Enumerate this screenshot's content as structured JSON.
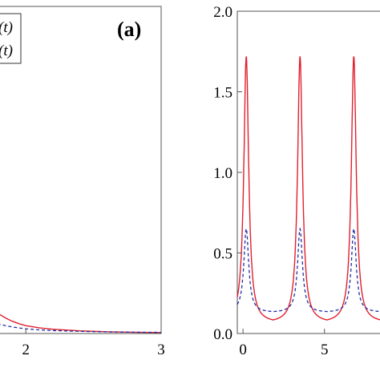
{
  "chart_data": [
    {
      "type": "line",
      "panel_label": "(a)",
      "xlim": [
        1.75,
        3.0
      ],
      "ylim": [
        0.0,
        2.0
      ],
      "x_ticks": [
        2,
        3
      ],
      "x_tick_labels": [
        "2",
        "3"
      ],
      "legend": {
        "placement": "top-left",
        "entries": [
          "(t)",
          "(t)"
        ]
      },
      "grid": false,
      "series": [
        {
          "style": "solid",
          "color": "#e0212e",
          "x": [
            1.75,
            1.8,
            1.85,
            1.9,
            1.95,
            2.0,
            2.1,
            2.2,
            2.4,
            2.6,
            2.8,
            3.0
          ],
          "y": [
            0.155,
            0.12,
            0.095,
            0.075,
            0.06,
            0.048,
            0.035,
            0.026,
            0.016,
            0.011,
            0.008,
            0.006
          ]
        },
        {
          "style": "dashed",
          "color": "#1f2fa8",
          "x": [
            1.75,
            1.8,
            1.85,
            1.9,
            1.95,
            2.0,
            2.1,
            2.2,
            2.4,
            2.6,
            2.8,
            3.0
          ],
          "y": [
            0.07,
            0.058,
            0.048,
            0.04,
            0.034,
            0.029,
            0.022,
            0.018,
            0.013,
            0.01,
            0.008,
            0.007
          ]
        }
      ]
    },
    {
      "type": "line",
      "xlim": [
        -0.35,
        9.0
      ],
      "ylim": [
        0.0,
        2.0
      ],
      "y_ticks": [
        0.0,
        0.5,
        1.0,
        1.5,
        2.0
      ],
      "y_tick_labels": [
        "0.0",
        "0.5",
        "1.0",
        "1.5",
        "2.0"
      ],
      "x_ticks": [
        0,
        5
      ],
      "x_tick_labels": [
        "0",
        "5"
      ],
      "grid": false,
      "periodic": {
        "period": 3.3,
        "peak_x": 0.2
      },
      "series": [
        {
          "style": "solid",
          "color": "#e0212e",
          "peak": 1.72,
          "min": 0.065
        },
        {
          "style": "dashed",
          "color": "#1f2fa8",
          "peak": 0.65,
          "min": 0.13
        }
      ]
    }
  ]
}
